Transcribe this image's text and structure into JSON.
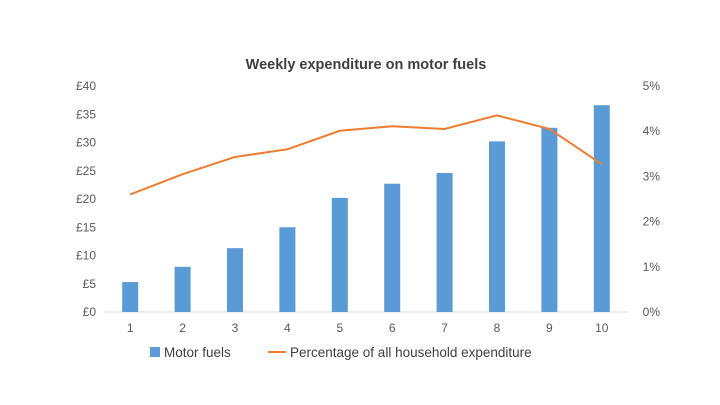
{
  "chart_data": {
    "type": "bar",
    "title": "Weekly expenditure on motor fuels",
    "categories": [
      "1",
      "2",
      "3",
      "4",
      "5",
      "6",
      "7",
      "8",
      "9",
      "10"
    ],
    "series": [
      {
        "name": "Motor fuels",
        "type": "bar",
        "axis": "left",
        "color": "#5b9bd5",
        "values": [
          5.3,
          8.0,
          11.3,
          15.0,
          20.2,
          22.7,
          24.6,
          30.2,
          32.6,
          36.6
        ]
      },
      {
        "name": "Percentage of all household expenditure",
        "type": "line",
        "axis": "right",
        "color": "#ed7d31",
        "values": [
          0.026,
          0.0305,
          0.0343,
          0.036,
          0.0401,
          0.0411,
          0.0405,
          0.0435,
          0.0405,
          0.0327
        ]
      }
    ],
    "y_left": {
      "ylim": [
        0,
        40
      ],
      "ticks": [
        0,
        5,
        10,
        15,
        20,
        25,
        30,
        35,
        40
      ],
      "tick_labels": [
        "£0",
        "£5",
        "£10",
        "£15",
        "£20",
        "£25",
        "£30",
        "£35",
        "£40"
      ]
    },
    "y_right": {
      "ylim": [
        0,
        0.05
      ],
      "ticks": [
        0,
        0.01,
        0.02,
        0.03,
        0.04,
        0.05
      ],
      "tick_labels": [
        "0%",
        "1%",
        "2%",
        "3%",
        "4%",
        "5%"
      ]
    },
    "grid": false,
    "legend_position": "bottom",
    "xlabel": "",
    "ylabel": ""
  }
}
